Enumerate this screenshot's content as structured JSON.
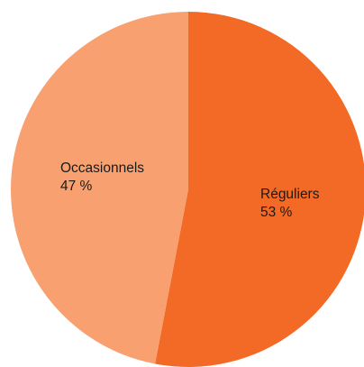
{
  "chart_data": {
    "type": "pie",
    "title": "",
    "slices": [
      {
        "label": "Réguliers",
        "value_text": "53 %",
        "value": 53,
        "color": "#f26a25"
      },
      {
        "label": "Occasionnels",
        "value_text": "47 %",
        "value": 47,
        "color": "#f8a06f"
      }
    ],
    "start_angle": "top (12 o'clock), clockwise",
    "legend": "none (labels inside slices)"
  }
}
